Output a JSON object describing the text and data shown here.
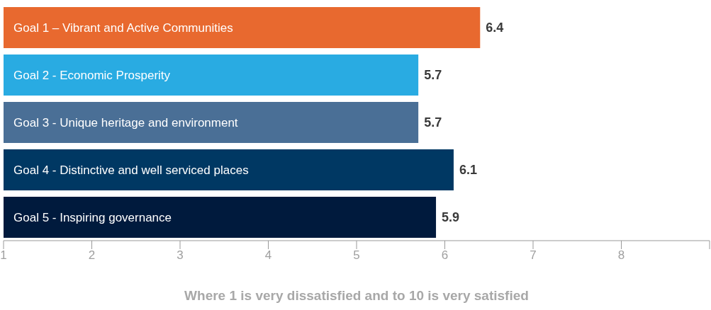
{
  "chart_data": {
    "type": "bar",
    "orientation": "horizontal",
    "categories": [
      "Goal 1 – Vibrant and Active Communities",
      "Goal 2 - Economic Prosperity",
      "Goal 3 - Unique heritage and environment",
      "Goal 4 - Distinctive and well serviced places",
      "Goal 5 - Inspiring governance"
    ],
    "values": [
      6.4,
      5.7,
      5.7,
      6.1,
      5.9
    ],
    "colors": [
      "#e8692f",
      "#29abe2",
      "#4a6f96",
      "#003863",
      "#001a3d"
    ],
    "xlim": [
      1,
      9
    ],
    "xticks": [
      1,
      2,
      3,
      4,
      5,
      6,
      7,
      8,
      {
        "value": 9,
        "label": null
      }
    ],
    "xlabel": "Where 1 is very dissatisfied and to 10 is very satisfied",
    "data_labels": true,
    "grid": false,
    "legend": false
  }
}
